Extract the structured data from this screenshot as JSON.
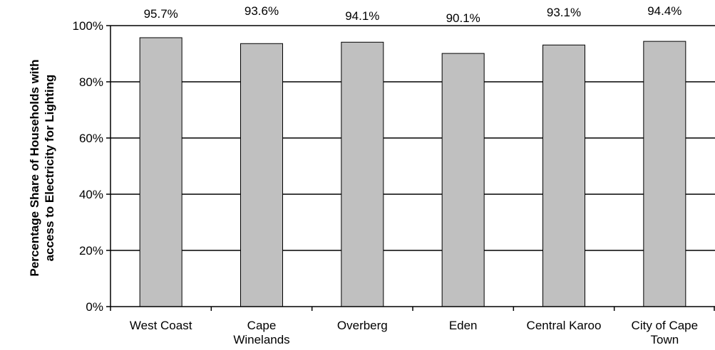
{
  "chart_data": {
    "type": "bar",
    "categories": [
      [
        "West Coast"
      ],
      [
        "Cape",
        "Winelands"
      ],
      [
        "Overberg"
      ],
      [
        "Eden"
      ],
      [
        "Central Karoo"
      ],
      [
        "City of Cape",
        "Town"
      ]
    ],
    "values": [
      95.7,
      93.6,
      94.1,
      90.1,
      93.1,
      94.4
    ],
    "data_labels": [
      "95.7%",
      "93.6%",
      "94.1%",
      "90.1%",
      "93.1%",
      "94.4%"
    ],
    "title": "",
    "xlabel": "",
    "ylabel": [
      "Percentage Share of Households with",
      "access to Electricity for Lighting"
    ],
    "ylim": [
      0,
      100
    ],
    "yticks": [
      0,
      20,
      40,
      60,
      80,
      100
    ],
    "ytick_labels": [
      "0%",
      "20%",
      "40%",
      "60%",
      "80%",
      "100%"
    ],
    "grid": true,
    "legend": "none",
    "colors": {
      "bar_fill": "#c0c0c0",
      "bar_stroke": "#000000",
      "grid": "#000000"
    }
  }
}
